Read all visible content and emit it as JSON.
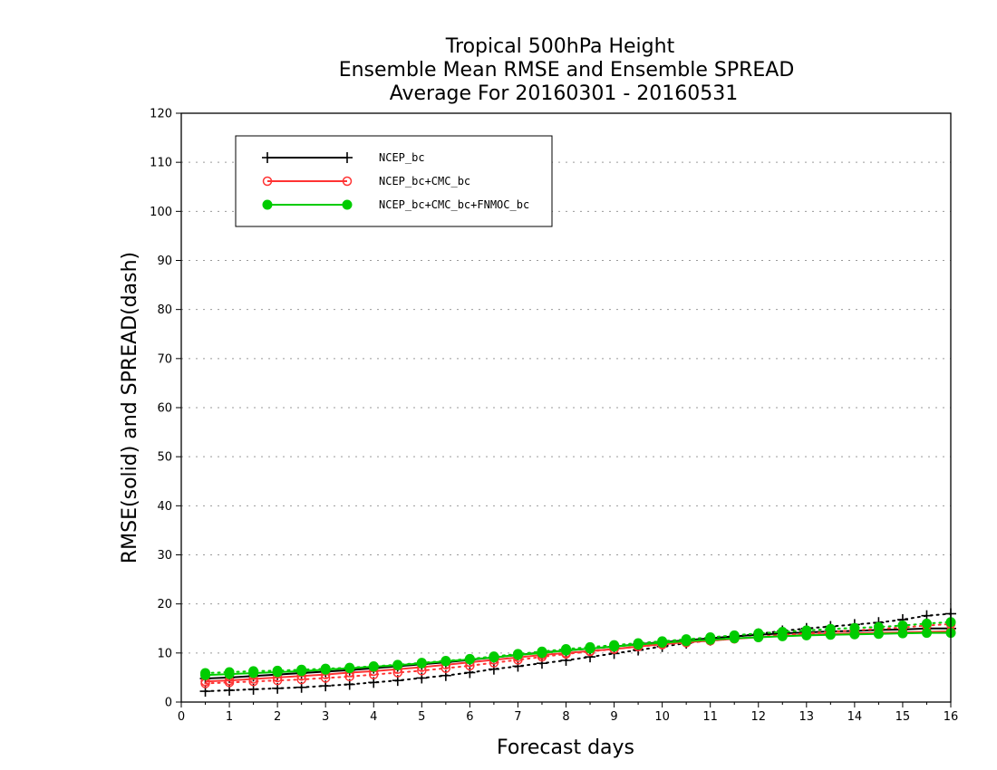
{
  "chart_data": {
    "type": "line",
    "title": [
      "Tropical 500hPa Height",
      "Ensemble Mean RMSE and Ensemble SPREAD",
      "Average For 20160301 - 20160531"
    ],
    "xlabel": "Forecast days",
    "ylabel": "RMSE(solid) and SPREAD(dash)",
    "xlim": [
      0,
      16
    ],
    "ylim": [
      0,
      120
    ],
    "xticks": [
      "0",
      "1",
      "2",
      "3",
      "4",
      "5",
      "6",
      "7",
      "8",
      "9",
      "10",
      "11",
      "12",
      "13",
      "14",
      "15",
      "16"
    ],
    "yticks": [
      "0",
      "10",
      "20",
      "30",
      "40",
      "50",
      "60",
      "70",
      "80",
      "90",
      "100",
      "110",
      "120"
    ],
    "grid": true,
    "legend_position": "top-left",
    "x": [
      0.5,
      1,
      1.5,
      2,
      2.5,
      3,
      3.5,
      4,
      4.5,
      5,
      5.5,
      6,
      6.5,
      7,
      7.5,
      8,
      8.5,
      9,
      9.5,
      10,
      10.5,
      11,
      11.5,
      12,
      12.5,
      13,
      13.5,
      14,
      14.5,
      15,
      15.5,
      16
    ],
    "series": [
      {
        "name": "NCEP_bc",
        "color": "#000000",
        "marker": "plus",
        "rmse": [
          4.8,
          5.0,
          5.3,
          5.6,
          5.9,
          6.2,
          6.5,
          6.9,
          7.3,
          7.7,
          8.1,
          8.6,
          9.1,
          9.6,
          10.1,
          10.5,
          10.9,
          11.3,
          11.8,
          12.2,
          12.6,
          13.0,
          13.4,
          13.7,
          14.0,
          14.2,
          14.4,
          14.5,
          14.7,
          14.8,
          15.0,
          15.0
        ],
        "spread": [
          2.2,
          2.4,
          2.6,
          2.8,
          3.0,
          3.3,
          3.6,
          4.0,
          4.4,
          4.9,
          5.4,
          6.0,
          6.7,
          7.3,
          7.9,
          8.5,
          9.2,
          9.9,
          10.6,
          11.3,
          12.0,
          12.6,
          13.3,
          13.9,
          14.5,
          15.0,
          15.4,
          15.8,
          16.2,
          16.8,
          17.6,
          18.0
        ]
      },
      {
        "name": "NCEP_bc+CMC_bc",
        "color": "#ff3333",
        "marker": "open-circle",
        "rmse": [
          4.2,
          4.4,
          4.7,
          5.0,
          5.3,
          5.6,
          6.0,
          6.3,
          6.7,
          7.1,
          7.6,
          8.1,
          8.6,
          9.1,
          9.6,
          10.0,
          10.4,
          10.8,
          11.3,
          11.8,
          12.2,
          12.5,
          12.9,
          13.2,
          13.5,
          13.7,
          13.9,
          14.0,
          14.1,
          14.2,
          14.3,
          14.4
        ],
        "spread": [
          3.8,
          4.0,
          4.2,
          4.4,
          4.6,
          4.9,
          5.2,
          5.6,
          6.0,
          6.4,
          6.9,
          7.4,
          8.0,
          8.6,
          9.2,
          9.8,
          10.3,
          10.8,
          11.3,
          11.7,
          12.1,
          12.5,
          12.9,
          13.3,
          13.7,
          14.0,
          14.3,
          14.6,
          14.9,
          15.2,
          15.6,
          15.9
        ]
      },
      {
        "name": "NCEP_bc+CMC_bc+FNMOC_bc",
        "color": "#00cc00",
        "marker": "filled-circle",
        "rmse": [
          5.5,
          5.7,
          5.9,
          6.1,
          6.3,
          6.6,
          6.9,
          7.2,
          7.5,
          7.9,
          8.3,
          8.7,
          9.1,
          9.6,
          10.0,
          10.5,
          10.9,
          11.3,
          11.7,
          12.1,
          12.4,
          12.7,
          13.0,
          13.2,
          13.4,
          13.6,
          13.7,
          13.8,
          13.9,
          14.0,
          14.1,
          14.1
        ],
        "spread": [
          5.9,
          6.1,
          6.3,
          6.4,
          6.6,
          6.8,
          7.0,
          7.3,
          7.6,
          8.0,
          8.4,
          8.8,
          9.3,
          9.8,
          10.3,
          10.8,
          11.2,
          11.6,
          12.0,
          12.4,
          12.8,
          13.2,
          13.6,
          14.0,
          14.3,
          14.6,
          14.9,
          15.1,
          15.3,
          15.6,
          16.0,
          16.3
        ]
      }
    ]
  }
}
